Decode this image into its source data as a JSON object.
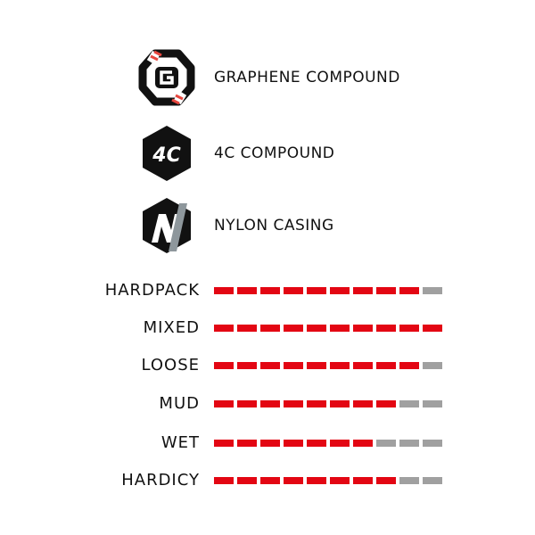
{
  "features": [
    {
      "icon": "graphene-g-hexagon-icon",
      "label": "GRAPHENE COMPOUND"
    },
    {
      "icon": "4c-hexagon-icon",
      "label": "4C COMPOUND",
      "icon_text": "4C"
    },
    {
      "icon": "nylon-n-hexagon-icon",
      "label": "NYLON CASING"
    }
  ],
  "ratings": {
    "max": 10,
    "items": [
      {
        "label": "HARDPACK",
        "value": 9
      },
      {
        "label": "MIXED",
        "value": 10
      },
      {
        "label": "LOOSE",
        "value": 9
      },
      {
        "label": "MUD",
        "value": 8
      },
      {
        "label": "WET",
        "value": 7
      },
      {
        "label": "HARDICY",
        "value": 8
      }
    ]
  },
  "colors": {
    "filled": "#e30613",
    "empty": "#a0a0a0",
    "icon_dark": "#111111",
    "icon_accent": "#e8473f",
    "nylon_slash": "#8e979c"
  }
}
